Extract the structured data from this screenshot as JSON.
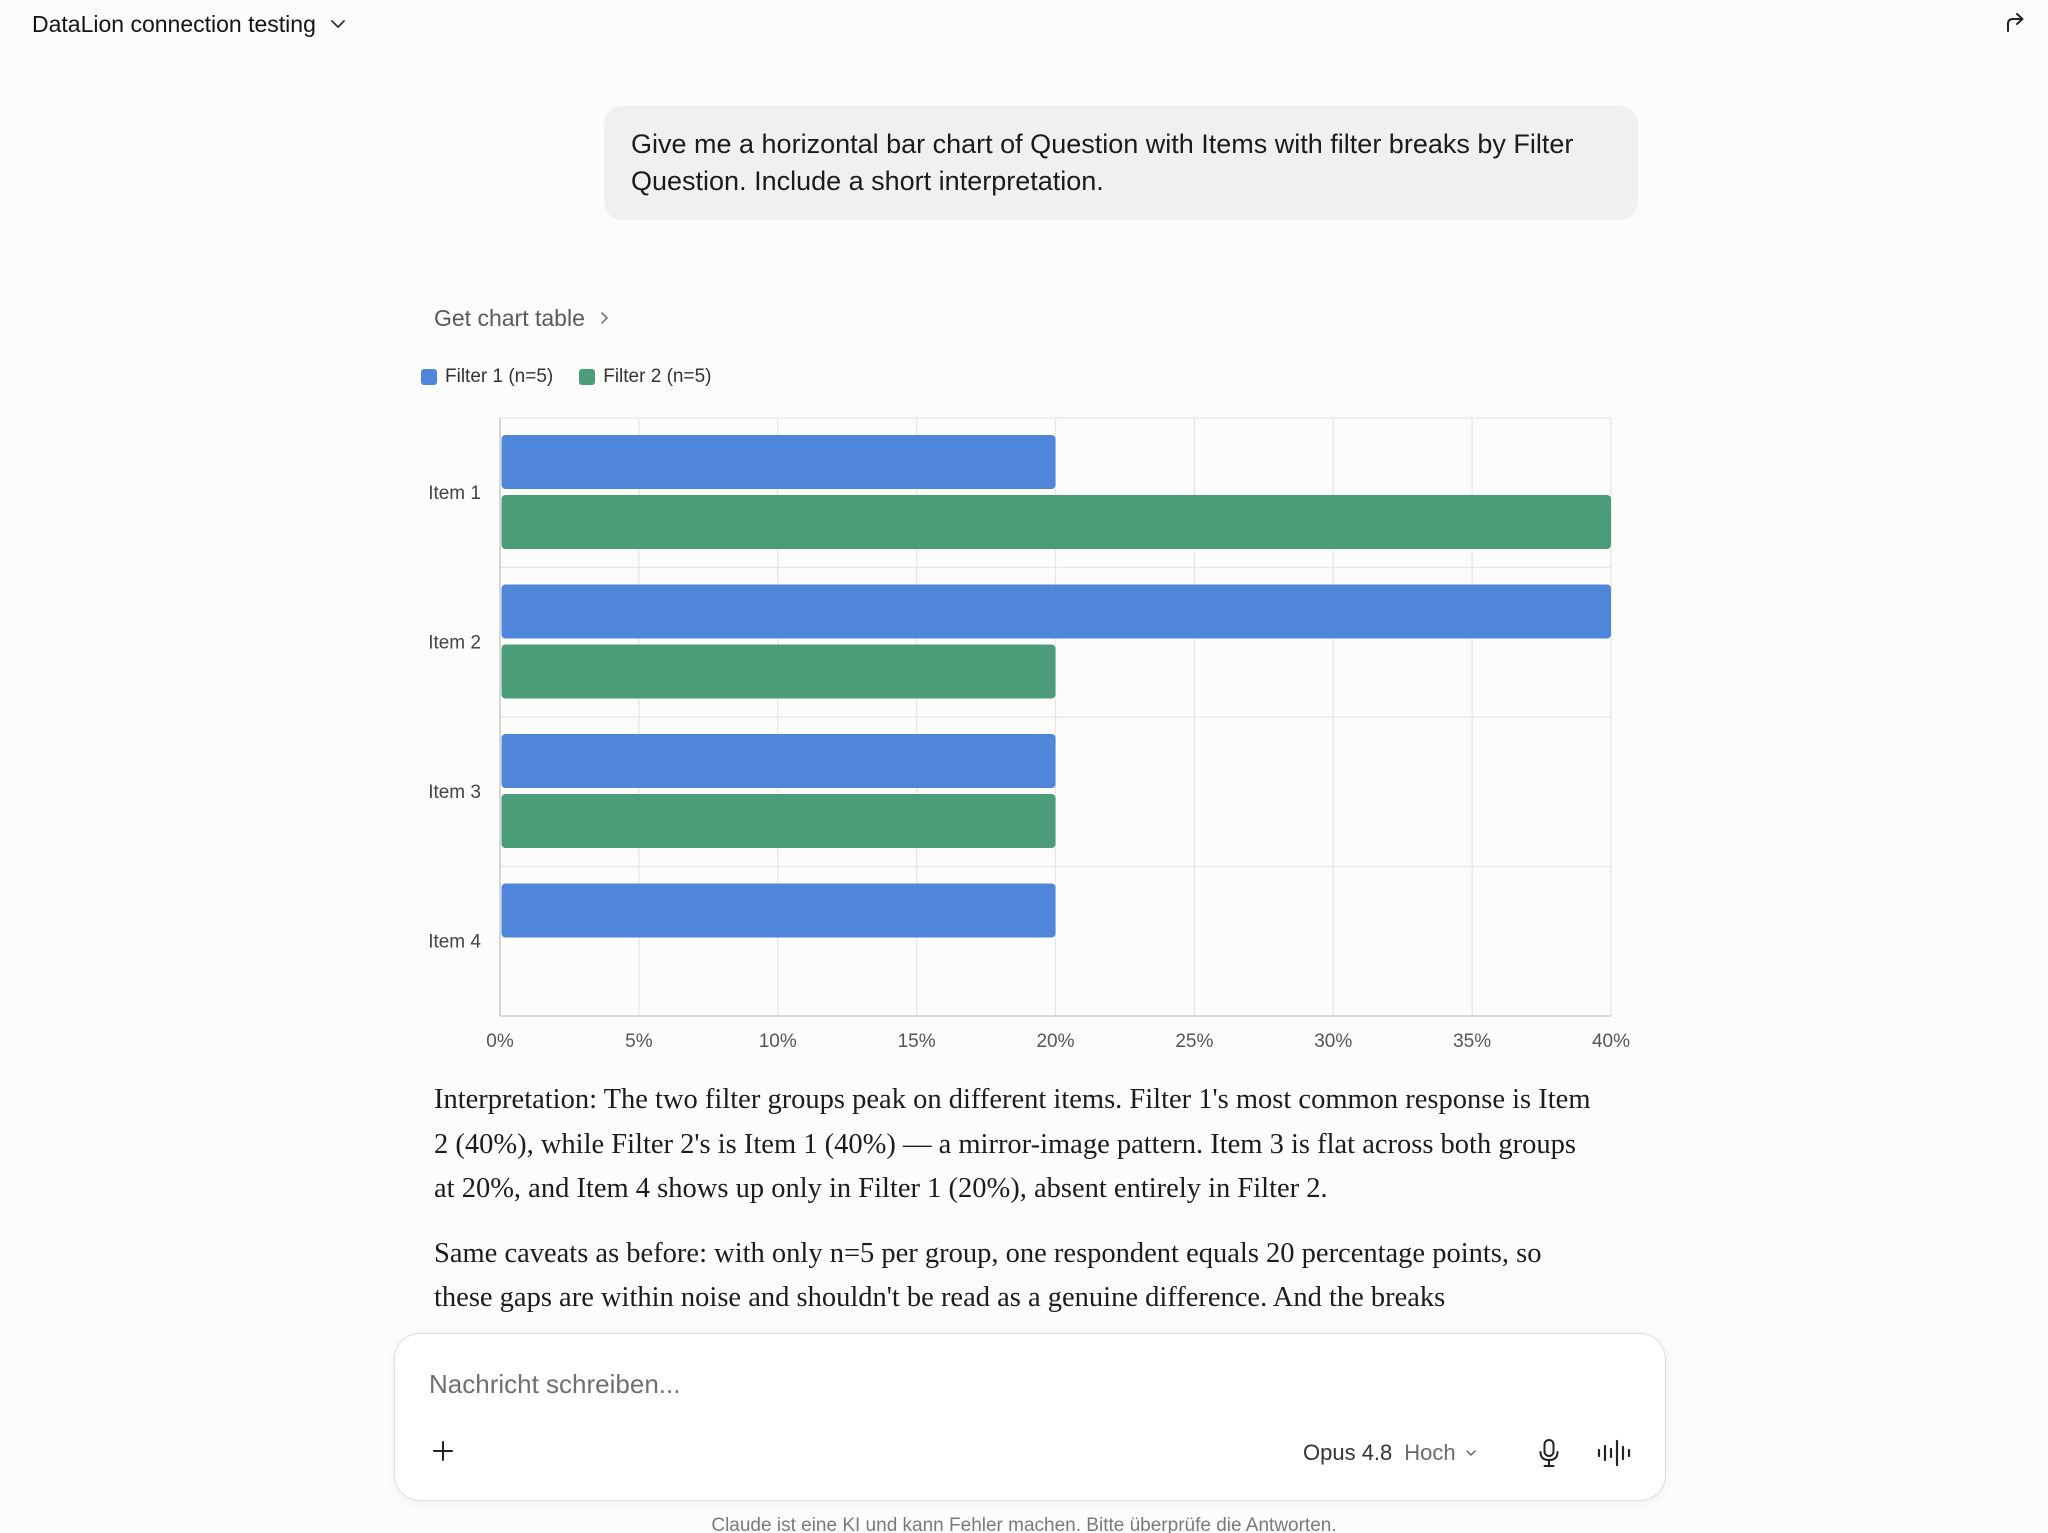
{
  "header": {
    "title": "DataLion connection testing"
  },
  "conversation": {
    "user_message": "Give me a horizontal bar chart of Question with Items with filter breaks by Filter Question. Include a short interpretation.",
    "chart_toggle_label": "Get chart table",
    "interpretation": [
      "Interpretation: The two filter groups peak on different items. Filter 1's most common response is Item 2 (40%), while Filter 2's is Item 1 (40%) — a mirror-image pattern. Item 3 is flat across both groups at 20%, and Item 4 shows up only in Filter 1 (20%), absent entirely in Filter 2.",
      "Same caveats as before: with only n=5 per group, one respondent equals 20 percentage points, so these gaps are within noise and shouldn't be read as a genuine difference. And the breaks"
    ]
  },
  "chart_data": {
    "type": "bar",
    "orientation": "horizontal",
    "categories": [
      "Item 1",
      "Item 2",
      "Item 3",
      "Item 4"
    ],
    "series": [
      {
        "name": "Filter 1 (n=5)",
        "color": "#4f86d9",
        "values": [
          20,
          40,
          20,
          20
        ]
      },
      {
        "name": "Filter 2 (n=5)",
        "color": "#4a9d78",
        "values": [
          40,
          20,
          20,
          0
        ]
      }
    ],
    "xlim": [
      0,
      40
    ],
    "xticks": [
      "0%",
      "5%",
      "10%",
      "15%",
      "20%",
      "25%",
      "30%",
      "35%",
      "40%"
    ],
    "tick_step": 5,
    "grid": true,
    "legend": "top-left"
  },
  "composer": {
    "placeholder": "Nachricht schreiben...",
    "model_name": "Opus 4.8",
    "model_effort": "Hoch"
  },
  "footer": {
    "disclaimer": "Claude ist eine KI und kann Fehler machen. Bitte überprüfe die Antworten."
  },
  "icons": {
    "title_chevron": "chevron-down-icon",
    "share": "share-icon",
    "toggle_chevron": "chevron-right-icon",
    "add": "plus-icon",
    "model_chevron": "chevron-down-icon",
    "mic": "microphone-icon",
    "voice": "voice-waveform-icon"
  }
}
